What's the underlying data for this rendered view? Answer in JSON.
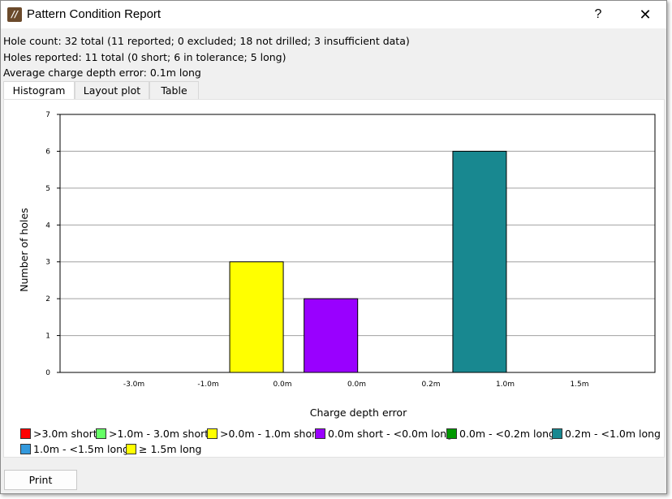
{
  "window": {
    "title": "Pattern Condition Report",
    "help_label": "?",
    "close_label": "✕"
  },
  "summary": {
    "hole_count": "Hole count: 32 total (11 reported; 0 excluded; 18 not drilled; 3 insufficient data)",
    "holes_reported": "Holes reported: 11 total (0 short; 6 in tolerance; 5 long)",
    "avg_error": "Average charge depth error: 0.1m long"
  },
  "tabs": [
    {
      "label": "Histogram",
      "active": true
    },
    {
      "label": "Layout plot",
      "active": false
    },
    {
      "label": "Table",
      "active": false
    }
  ],
  "chart_data": {
    "type": "bar",
    "xlabel": "Charge depth error",
    "ylabel": "Number of holes",
    "ylim": [
      0,
      7
    ],
    "y_ticks": [
      "0",
      "1",
      "2",
      "3",
      "4",
      "5",
      "6",
      "7"
    ],
    "x_ticks": [
      "-3.0m",
      "-1.0m",
      "0.0m",
      "0.0m",
      "0.2m",
      "1.0m",
      "1.5m"
    ],
    "grid": true,
    "categories": [
      ">3.0m short",
      ">1.0m - 3.0m short",
      ">0.0m - 1.0m short",
      "0.0m short - <0.0m long",
      "0.0m - <0.2m long",
      "0.2m - <1.0m long",
      "1.0m - <1.5m long",
      "≥ 1.5m long"
    ],
    "values": [
      0,
      0,
      3,
      2,
      0,
      6,
      0,
      0
    ],
    "colors": [
      "#ff0000",
      "#66ff66",
      "#ffff00",
      "#9900ff",
      "#009900",
      "#188890",
      "#3399dd",
      "#ffff00"
    ]
  },
  "legend": [
    {
      "label": ">3.0m short",
      "color": "#ff0000"
    },
    {
      "label": ">1.0m - 3.0m short",
      "color": "#66ff66"
    },
    {
      "label": ">0.0m - 1.0m short",
      "color": "#ffff00"
    },
    {
      "label": "0.0m short - <0.0m long",
      "color": "#9900ff"
    },
    {
      "label": "0.0m - <0.2m long",
      "color": "#009900"
    },
    {
      "label": "0.2m - <1.0m long",
      "color": "#188890"
    },
    {
      "label": "1.0m - <1.5m long",
      "color": "#3399dd"
    },
    {
      "label": "≥ 1.5m long",
      "color": "#ffff00"
    }
  ],
  "footer": {
    "print_label": "Print"
  }
}
